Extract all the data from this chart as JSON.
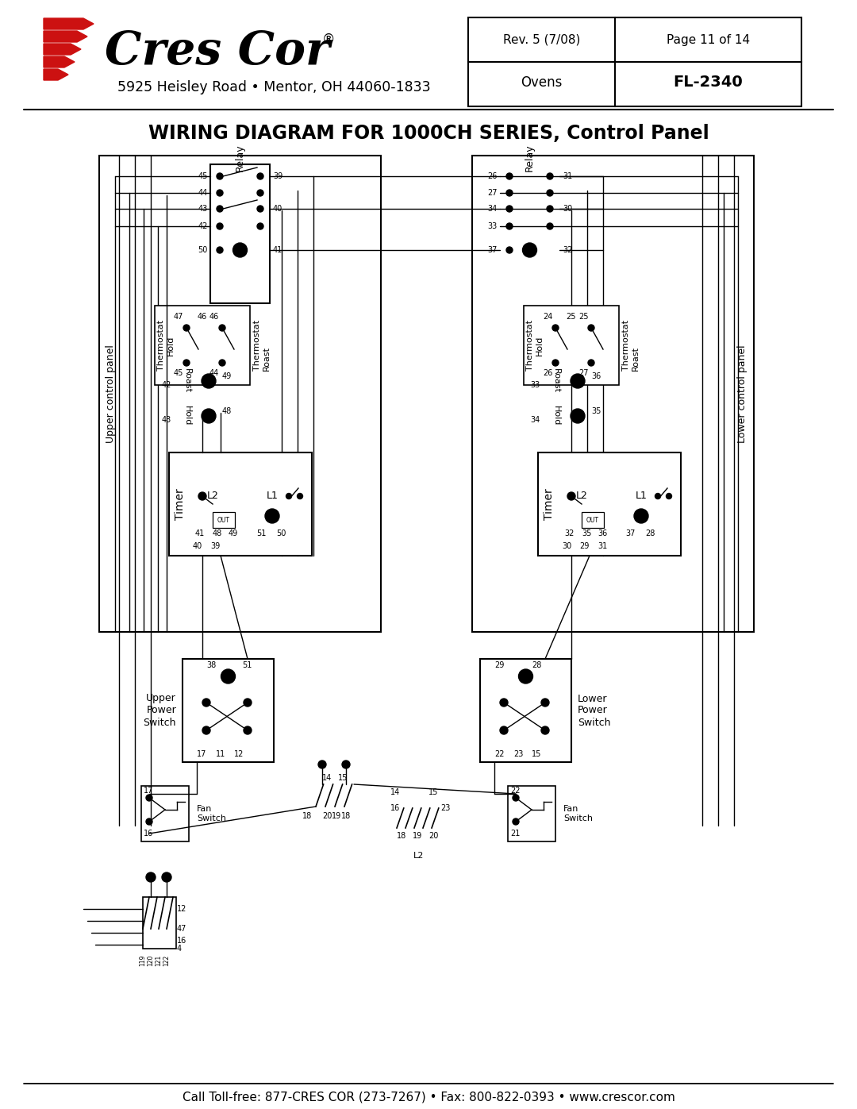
{
  "title": "WIRING DIAGRAM FOR 1000CH SERIES, Control Panel",
  "company_address": "5925 Heisley Road • Mentor, OH 44060-1833",
  "doc_label1": "Ovens",
  "doc_label2": "FL-2340",
  "doc_label3": "Rev. 5 (7/08)",
  "doc_label4": "Page 11 of 14",
  "footer": "Call Toll-free: 877-CRES COR (273-7267) • Fax: 800-822-0393 • www.crescor.com",
  "bg_color": "#ffffff",
  "lc": "#000000",
  "logo_red": "#cc1111"
}
